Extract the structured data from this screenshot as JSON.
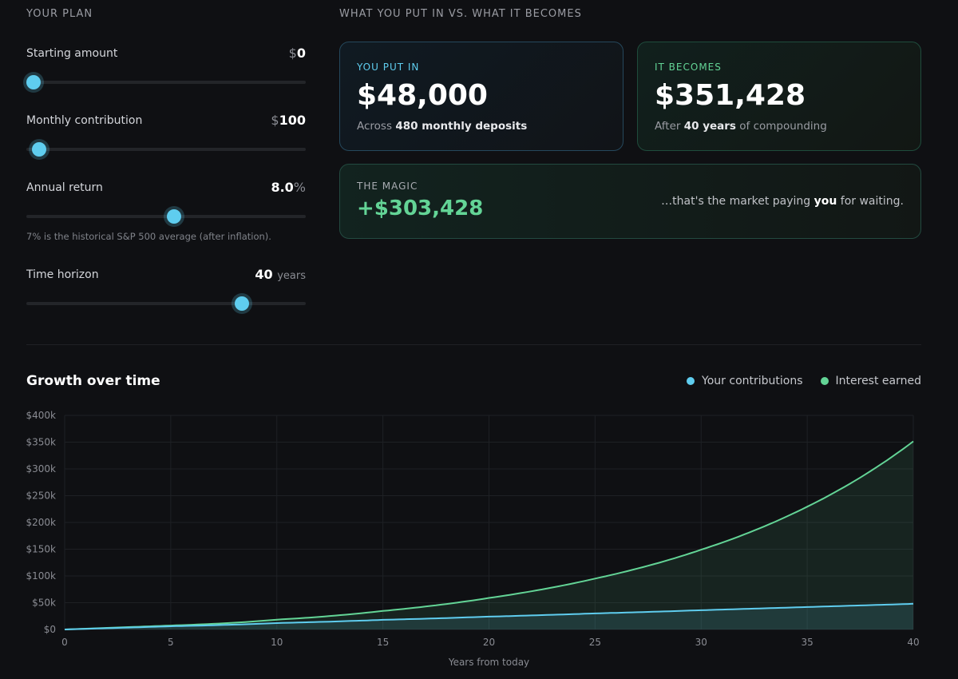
{
  "plan": {
    "title": "YOUR PLAN",
    "starting_amount": {
      "label": "Starting amount",
      "unit": "$",
      "value": "0",
      "slider_fraction": 0.0
    },
    "monthly_contribution": {
      "label": "Monthly contribution",
      "unit": "$",
      "value": "100",
      "slider_fraction": 0.02
    },
    "annual_return": {
      "label": "Annual return",
      "value": "8.0",
      "unit": "%",
      "slider_fraction": 0.53,
      "hint": "7% is the historical S&P 500 average (after inflation)."
    },
    "time_horizon": {
      "label": "Time horizon",
      "value": "40",
      "unit": "years",
      "slider_fraction": 0.785
    }
  },
  "results": {
    "title": "WHAT YOU PUT IN VS. WHAT IT BECOMES",
    "put_in": {
      "label": "YOU PUT IN",
      "amount": "$48,000",
      "sub_prefix": "Across",
      "sub_bold": "480 monthly deposits",
      "sub_suffix": ""
    },
    "becomes": {
      "label": "IT BECOMES",
      "amount": "$351,428",
      "sub_prefix": "After",
      "sub_bold": "40 years",
      "sub_suffix": "of compounding"
    },
    "magic": {
      "label": "THE MAGIC",
      "amount": "+$303,428",
      "note_prefix": "…that's the market paying",
      "note_bold": "you",
      "note_suffix": "for waiting."
    }
  },
  "colors": {
    "contributions": "#5fcdef",
    "interest": "#63d496",
    "accent": "#5fcdef"
  },
  "chart_data": {
    "type": "area",
    "title": "Growth over time",
    "xlabel": "Years from today",
    "ylabel": "",
    "xlim": [
      0,
      40
    ],
    "ylim": [
      0,
      400000
    ],
    "x_ticks": [
      0,
      5,
      10,
      15,
      20,
      25,
      30,
      35,
      40
    ],
    "y_ticks": [
      0,
      50000,
      100000,
      150000,
      200000,
      250000,
      300000,
      350000,
      400000
    ],
    "y_tick_labels": [
      "$0",
      "$50k",
      "$100k",
      "$150k",
      "$200k",
      "$250k",
      "$300k",
      "$350k",
      "$400k"
    ],
    "grid": true,
    "legend_position": "top-right",
    "series": [
      {
        "name": "Your contributions",
        "x": [
          0,
          5,
          10,
          15,
          20,
          25,
          30,
          35,
          40
        ],
        "values": [
          0,
          6000,
          12000,
          18000,
          24000,
          30000,
          36000,
          42000,
          48000
        ]
      },
      {
        "name": "Interest earned",
        "x": [
          0,
          5,
          10,
          15,
          20,
          25,
          30,
          35,
          40
        ],
        "values": [
          0,
          7348,
          18295,
          34604,
          58902,
          95103,
          149036,
          229388,
          351428
        ]
      }
    ]
  }
}
